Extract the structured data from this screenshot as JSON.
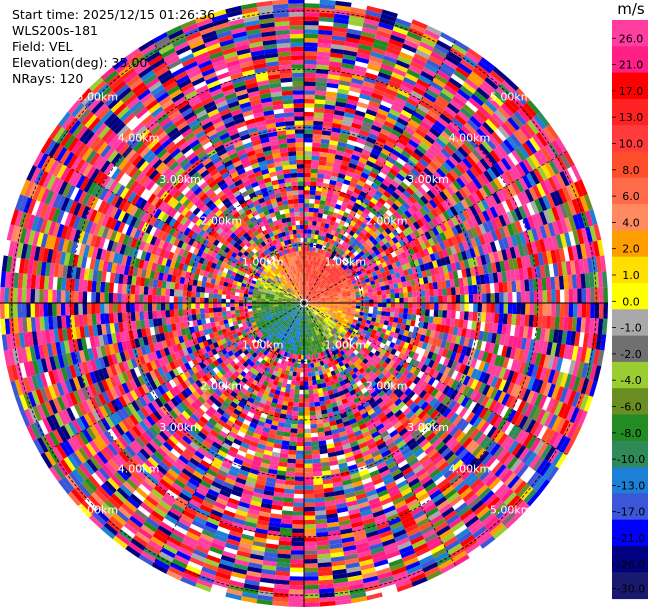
{
  "header": {
    "start_time": "Start time: 2025/12/15 01:26:36",
    "instrument": "WLS200s-181",
    "field": "Field: VEL",
    "elevation": "Elevation(deg): 35.00",
    "nrays": "NRays: 120"
  },
  "chart_data": {
    "type": "heatmap",
    "projection": "polar-ppi",
    "field": "VEL",
    "units": "m/s",
    "nrays": 120,
    "elevation_deg": 35.0,
    "range_rings_km": [
      1.0,
      2.0,
      3.0,
      4.0,
      5.0
    ],
    "ring_labels": [
      "1.00km",
      "2.00km",
      "3.00km",
      "4.00km",
      "5.00km"
    ],
    "max_range_km": 5.2,
    "grid": true,
    "colorbar": {
      "label": "m/s",
      "placement": "right",
      "range": [
        -30.0,
        30.0
      ],
      "tick_labels": [
        "26.0",
        "21.0",
        "17.0",
        "13.0",
        "10.0",
        "8.0",
        "6.0",
        "4.0",
        "2.0",
        "1.0",
        "0.0",
        "-1.0",
        "-2.0",
        "-4.0",
        "-6.0",
        "-8.0",
        "-10.0",
        "-13.0",
        "-17.0",
        "-21.0",
        "-26.0",
        "-30.0"
      ],
      "colors": [
        "#ff3ea0",
        "#ff1f86",
        "#ff0000",
        "#ff2222",
        "#ff3b3b",
        "#ff4f2a",
        "#ff6a4a",
        "#ff8a60",
        "#ff9e00",
        "#ffdf00",
        "#ffff00",
        "#a9a9a9",
        "#707070",
        "#9acd32",
        "#6b8e23",
        "#228b22",
        "#2e8b57",
        "#1e7fd6",
        "#3a57d9",
        "#0000ff",
        "#000080",
        "#191970"
      ]
    }
  }
}
